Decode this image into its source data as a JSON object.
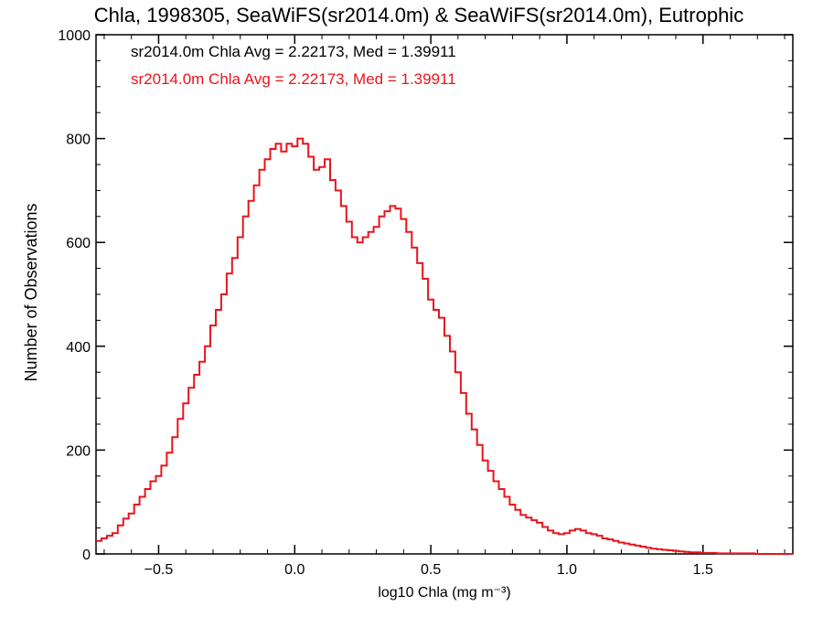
{
  "chart_data": {
    "type": "line",
    "title": "Chla, 1998305, SeaWiFS(sr2014.0m) & SeaWiFS(sr2014.0m), Eutrophic",
    "xlabel": "log10 Chla (mg m⁻³)",
    "ylabel": "Number of Observations",
    "xlim": [
      -0.73,
      1.83
    ],
    "ylim": [
      0,
      1000
    ],
    "x_ticks": [
      -0.5,
      0.0,
      0.5,
      1.0,
      1.5
    ],
    "x_tick_labels": [
      "−0.5",
      "0.0",
      "0.5",
      "1.0",
      "1.5"
    ],
    "y_ticks": [
      0,
      200,
      400,
      600,
      800,
      1000
    ],
    "y_tick_labels": [
      "0",
      "200",
      "400",
      "600",
      "800",
      "1000"
    ],
    "annotations": [
      {
        "text": "sr2014.0m Chla Avg = 2.22173, Med = 1.39911",
        "color": "#000000"
      },
      {
        "text": "sr2014.0m Chla Avg = 2.22173, Med = 1.39911",
        "color": "#e8141c"
      }
    ],
    "series": [
      {
        "color": "#e8141c",
        "style": "step",
        "x": [
          -0.72,
          -0.7,
          -0.68,
          -0.66,
          -0.64,
          -0.62,
          -0.6,
          -0.58,
          -0.56,
          -0.54,
          -0.52,
          -0.5,
          -0.48,
          -0.46,
          -0.44,
          -0.42,
          -0.4,
          -0.38,
          -0.36,
          -0.34,
          -0.32,
          -0.3,
          -0.28,
          -0.26,
          -0.24,
          -0.22,
          -0.2,
          -0.18,
          -0.16,
          -0.14,
          -0.12,
          -0.1,
          -0.08,
          -0.06,
          -0.04,
          -0.02,
          0.0,
          0.02,
          0.04,
          0.06,
          0.08,
          0.1,
          0.12,
          0.14,
          0.16,
          0.18,
          0.2,
          0.22,
          0.24,
          0.26,
          0.28,
          0.3,
          0.32,
          0.34,
          0.36,
          0.38,
          0.4,
          0.42,
          0.44,
          0.46,
          0.48,
          0.5,
          0.52,
          0.54,
          0.56,
          0.58,
          0.6,
          0.62,
          0.64,
          0.66,
          0.68,
          0.7,
          0.72,
          0.74,
          0.76,
          0.78,
          0.8,
          0.82,
          0.84,
          0.86,
          0.88,
          0.9,
          0.92,
          0.94,
          0.96,
          0.98,
          1.0,
          1.02,
          1.04,
          1.06,
          1.08,
          1.1,
          1.12,
          1.14,
          1.16,
          1.18,
          1.2,
          1.22,
          1.24,
          1.26,
          1.28,
          1.3,
          1.32,
          1.34,
          1.36,
          1.38,
          1.4,
          1.42,
          1.44,
          1.46,
          1.48,
          1.5,
          1.52,
          1.54,
          1.56,
          1.58,
          1.6,
          1.62,
          1.64,
          1.66,
          1.68,
          1.7,
          1.72,
          1.74,
          1.76,
          1.78,
          1.8,
          1.82
        ],
        "values": [
          25,
          30,
          35,
          40,
          55,
          68,
          78,
          95,
          110,
          125,
          140,
          150,
          170,
          195,
          225,
          260,
          290,
          320,
          345,
          370,
          400,
          440,
          470,
          500,
          540,
          570,
          610,
          650,
          680,
          710,
          740,
          760,
          780,
          790,
          775,
          790,
          785,
          800,
          790,
          765,
          740,
          745,
          760,
          720,
          700,
          670,
          640,
          610,
          600,
          610,
          620,
          630,
          650,
          660,
          670,
          665,
          645,
          620,
          590,
          560,
          530,
          490,
          470,
          455,
          420,
          390,
          350,
          310,
          270,
          240,
          210,
          180,
          160,
          140,
          125,
          110,
          95,
          85,
          75,
          70,
          65,
          60,
          52,
          45,
          40,
          38,
          40,
          45,
          48,
          45,
          40,
          38,
          35,
          30,
          28,
          25,
          22,
          20,
          18,
          16,
          14,
          12,
          10,
          9,
          8,
          7,
          6,
          5,
          4,
          3,
          3,
          2,
          2,
          2,
          1,
          1,
          1,
          1,
          1,
          1,
          1,
          0,
          0,
          0,
          0,
          0,
          0,
          0
        ]
      }
    ]
  }
}
